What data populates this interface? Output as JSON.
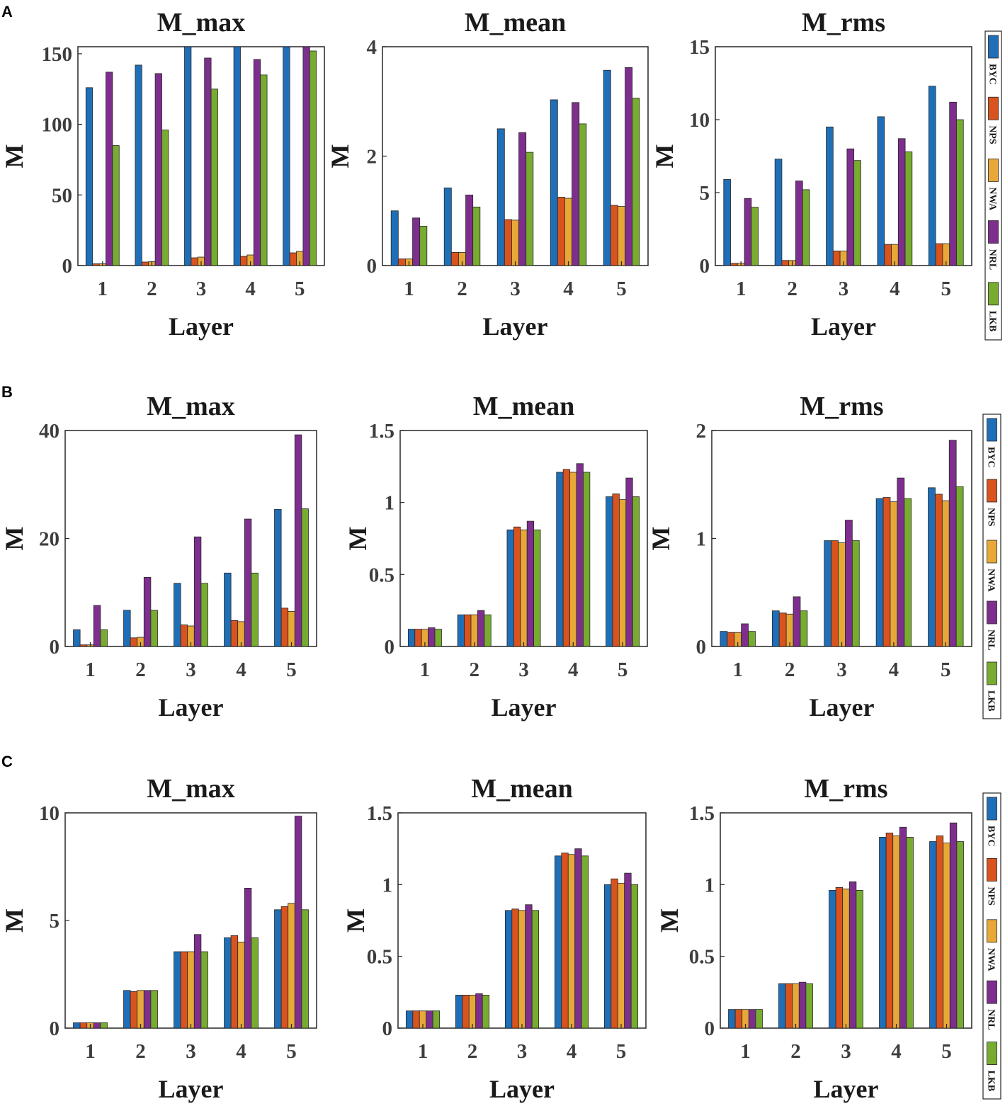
{
  "colors": {
    "BYC": "#1f6fb8",
    "NPS": "#d9531e",
    "NWA": "#e8a838",
    "NRL": "#7e2f8e",
    "LKB": "#77ac30"
  },
  "legend": [
    "BYC",
    "NPS",
    "NWA",
    "NRL",
    "LKB"
  ],
  "rows": [
    {
      "panel": "A"
    },
    {
      "panel": "B"
    },
    {
      "panel": "C"
    }
  ],
  "chart_data": [
    {
      "panel": "A",
      "type": "bar",
      "title": "M_max",
      "xlabel": "Layer",
      "ylabel": "M",
      "categories": [
        "1",
        "2",
        "3",
        "4",
        "5"
      ],
      "ylim": [
        0,
        155
      ],
      "yticks": [
        0,
        50,
        100,
        150
      ],
      "ytick_labels": [
        "0",
        "50",
        "100",
        "150"
      ],
      "series": [
        {
          "name": "BYC",
          "values": [
            126,
            142,
            155,
            155,
            157
          ]
        },
        {
          "name": "NPS",
          "values": [
            1.2,
            2.5,
            5.5,
            6.5,
            9
          ]
        },
        {
          "name": "NWA",
          "values": [
            1.2,
            2.7,
            6,
            7.5,
            10
          ]
        },
        {
          "name": "NRL",
          "values": [
            137,
            136,
            147,
            146,
            155
          ]
        },
        {
          "name": "LKB",
          "values": [
            85,
            96,
            125,
            135,
            152
          ]
        }
      ]
    },
    {
      "panel": "A",
      "type": "bar",
      "title": "M_mean",
      "xlabel": "Layer",
      "ylabel": "M",
      "categories": [
        "1",
        "2",
        "3",
        "4",
        "5"
      ],
      "ylim": [
        0,
        4
      ],
      "yticks": [
        0,
        2,
        4
      ],
      "ytick_labels": [
        "0",
        "2",
        "4"
      ],
      "series": [
        {
          "name": "BYC",
          "values": [
            1.0,
            1.42,
            2.5,
            3.03,
            3.57
          ]
        },
        {
          "name": "NPS",
          "values": [
            0.12,
            0.24,
            0.84,
            1.25,
            1.1
          ]
        },
        {
          "name": "NWA",
          "values": [
            0.12,
            0.24,
            0.83,
            1.23,
            1.08
          ]
        },
        {
          "name": "NRL",
          "values": [
            0.87,
            1.29,
            2.43,
            2.98,
            3.62
          ]
        },
        {
          "name": "LKB",
          "values": [
            0.72,
            1.07,
            2.07,
            2.59,
            3.06
          ]
        }
      ]
    },
    {
      "panel": "A",
      "type": "bar",
      "title": "M_rms",
      "xlabel": "Layer",
      "ylabel": "M",
      "categories": [
        "1",
        "2",
        "3",
        "4",
        "5"
      ],
      "ylim": [
        0,
        15
      ],
      "yticks": [
        0,
        5,
        10,
        15
      ],
      "ytick_labels": [
        "0",
        "5",
        "10",
        "15"
      ],
      "series": [
        {
          "name": "BYC",
          "values": [
            5.9,
            7.3,
            9.5,
            10.2,
            12.3
          ]
        },
        {
          "name": "NPS",
          "values": [
            0.15,
            0.35,
            1.0,
            1.45,
            1.5
          ]
        },
        {
          "name": "NWA",
          "values": [
            0.15,
            0.35,
            1.0,
            1.45,
            1.5
          ]
        },
        {
          "name": "NRL",
          "values": [
            4.6,
            5.8,
            8.0,
            8.7,
            11.2
          ]
        },
        {
          "name": "LKB",
          "values": [
            4.0,
            5.2,
            7.2,
            7.8,
            10.0
          ]
        }
      ]
    },
    {
      "panel": "B",
      "type": "bar",
      "title": "M_max",
      "xlabel": "Layer",
      "ylabel": "M",
      "categories": [
        "1",
        "2",
        "3",
        "4",
        "5"
      ],
      "ylim": [
        0,
        40
      ],
      "yticks": [
        0,
        20,
        40
      ],
      "ytick_labels": [
        "0",
        "20",
        "40"
      ],
      "series": [
        {
          "name": "BYC",
          "values": [
            3.1,
            6.7,
            11.7,
            13.6,
            25.4
          ]
        },
        {
          "name": "NPS",
          "values": [
            0.3,
            1.6,
            4.0,
            4.8,
            7.1
          ]
        },
        {
          "name": "NWA",
          "values": [
            0.3,
            1.7,
            3.8,
            4.6,
            6.5
          ]
        },
        {
          "name": "NRL",
          "values": [
            7.6,
            12.8,
            20.3,
            23.6,
            39.2
          ]
        },
        {
          "name": "LKB",
          "values": [
            3.1,
            6.7,
            11.7,
            13.6,
            25.5
          ]
        }
      ]
    },
    {
      "panel": "B",
      "type": "bar",
      "title": "M_mean",
      "xlabel": "Layer",
      "ylabel": "M",
      "categories": [
        "1",
        "2",
        "3",
        "4",
        "5"
      ],
      "ylim": [
        0,
        1.5
      ],
      "yticks": [
        0,
        0.5,
        1,
        1.5
      ],
      "ytick_labels": [
        "0",
        "0.5",
        "1",
        "1.5"
      ],
      "series": [
        {
          "name": "BYC",
          "values": [
            0.12,
            0.22,
            0.81,
            1.21,
            1.04
          ]
        },
        {
          "name": "NPS",
          "values": [
            0.12,
            0.22,
            0.83,
            1.23,
            1.06
          ]
        },
        {
          "name": "NWA",
          "values": [
            0.12,
            0.22,
            0.81,
            1.21,
            1.02
          ]
        },
        {
          "name": "NRL",
          "values": [
            0.13,
            0.25,
            0.87,
            1.27,
            1.17
          ]
        },
        {
          "name": "LKB",
          "values": [
            0.12,
            0.22,
            0.81,
            1.21,
            1.04
          ]
        }
      ]
    },
    {
      "panel": "B",
      "type": "bar",
      "title": "M_rms",
      "xlabel": "Layer",
      "ylabel": "M",
      "categories": [
        "1",
        "2",
        "3",
        "4",
        "5"
      ],
      "ylim": [
        0,
        2
      ],
      "yticks": [
        0,
        1,
        2
      ],
      "ytick_labels": [
        "0",
        "1",
        "2"
      ],
      "series": [
        {
          "name": "BYC",
          "values": [
            0.14,
            0.33,
            0.98,
            1.37,
            1.47
          ]
        },
        {
          "name": "NPS",
          "values": [
            0.13,
            0.31,
            0.98,
            1.38,
            1.41
          ]
        },
        {
          "name": "NWA",
          "values": [
            0.13,
            0.3,
            0.96,
            1.34,
            1.35
          ]
        },
        {
          "name": "NRL",
          "values": [
            0.21,
            0.46,
            1.17,
            1.56,
            1.91
          ]
        },
        {
          "name": "LKB",
          "values": [
            0.14,
            0.33,
            0.98,
            1.37,
            1.48
          ]
        }
      ]
    },
    {
      "panel": "C",
      "type": "bar",
      "title": "M_max",
      "xlabel": "Layer",
      "ylabel": "M",
      "categories": [
        "1",
        "2",
        "3",
        "4",
        "5"
      ],
      "ylim": [
        0,
        10
      ],
      "yticks": [
        0,
        5,
        10
      ],
      "ytick_labels": [
        "0",
        "5",
        "10"
      ],
      "series": [
        {
          "name": "BYC",
          "values": [
            0.25,
            1.75,
            3.55,
            4.2,
            5.5
          ]
        },
        {
          "name": "NPS",
          "values": [
            0.25,
            1.7,
            3.55,
            4.3,
            5.65
          ]
        },
        {
          "name": "NWA",
          "values": [
            0.25,
            1.75,
            3.55,
            4.0,
            5.8
          ]
        },
        {
          "name": "NRL",
          "values": [
            0.25,
            1.75,
            4.35,
            6.5,
            9.85
          ]
        },
        {
          "name": "LKB",
          "values": [
            0.25,
            1.75,
            3.55,
            4.2,
            5.5
          ]
        }
      ]
    },
    {
      "panel": "C",
      "type": "bar",
      "title": "M_mean",
      "xlabel": "Layer",
      "ylabel": "M",
      "categories": [
        "1",
        "2",
        "3",
        "4",
        "5"
      ],
      "ylim": [
        0,
        1.5
      ],
      "yticks": [
        0,
        0.5,
        1,
        1.5
      ],
      "ytick_labels": [
        "0",
        "0.5",
        "1",
        "1.5"
      ],
      "series": [
        {
          "name": "BYC",
          "values": [
            0.12,
            0.23,
            0.82,
            1.2,
            1.0
          ]
        },
        {
          "name": "NPS",
          "values": [
            0.12,
            0.23,
            0.83,
            1.22,
            1.04
          ]
        },
        {
          "name": "NWA",
          "values": [
            0.12,
            0.23,
            0.82,
            1.21,
            1.01
          ]
        },
        {
          "name": "NRL",
          "values": [
            0.12,
            0.24,
            0.86,
            1.25,
            1.08
          ]
        },
        {
          "name": "LKB",
          "values": [
            0.12,
            0.23,
            0.82,
            1.2,
            1.0
          ]
        }
      ]
    },
    {
      "panel": "C",
      "type": "bar",
      "title": "M_rms",
      "xlabel": "Layer",
      "ylabel": "M",
      "categories": [
        "1",
        "2",
        "3",
        "4",
        "5"
      ],
      "ylim": [
        0,
        1.5
      ],
      "yticks": [
        0,
        0.5,
        1,
        1.5
      ],
      "ytick_labels": [
        "0",
        "0.5",
        "1",
        "1.5"
      ],
      "series": [
        {
          "name": "BYC",
          "values": [
            0.13,
            0.31,
            0.96,
            1.33,
            1.3
          ]
        },
        {
          "name": "NPS",
          "values": [
            0.13,
            0.31,
            0.98,
            1.36,
            1.34
          ]
        },
        {
          "name": "NWA",
          "values": [
            0.13,
            0.31,
            0.97,
            1.34,
            1.29
          ]
        },
        {
          "name": "NRL",
          "values": [
            0.13,
            0.32,
            1.02,
            1.4,
            1.43
          ]
        },
        {
          "name": "LKB",
          "values": [
            0.13,
            0.31,
            0.96,
            1.33,
            1.3
          ]
        }
      ]
    }
  ]
}
